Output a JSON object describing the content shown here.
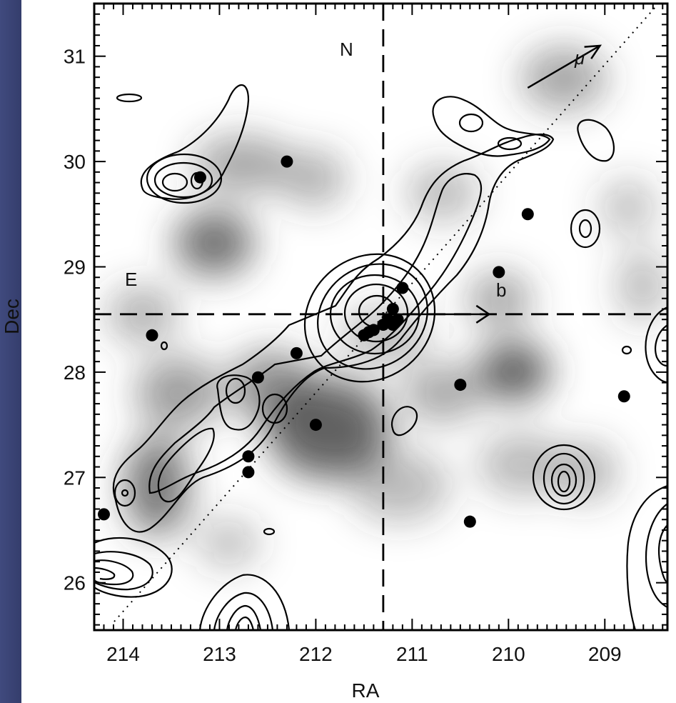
{
  "chart_data": {
    "type": "scatter",
    "title": "",
    "xlabel": "RA",
    "ylabel": "Dec",
    "xlim": [
      214.3,
      208.35
    ],
    "ylim": [
      25.55,
      31.5
    ],
    "x_ticks": [
      214,
      213,
      212,
      211,
      210,
      209
    ],
    "y_ticks": [
      26,
      27,
      28,
      29,
      30,
      31
    ],
    "x_tick_labels": [
      "214",
      "213",
      "212",
      "211",
      "210",
      "209"
    ],
    "y_tick_labels": [
      "26",
      "27",
      "28",
      "29",
      "30",
      "31"
    ],
    "grid": false,
    "background": "grayscale density map with contour overlay",
    "reference_lines": {
      "ra": 211.3,
      "dec": 28.55
    },
    "points": {
      "x": [
        213.2,
        212.3,
        209.8,
        210.1,
        211.1,
        211.2,
        211.25,
        211.3,
        211.4,
        211.45,
        211.5,
        211.2,
        211.15,
        213.7,
        212.2,
        212.6,
        212.0,
        212.7,
        212.7,
        210.5,
        208.8,
        214.2,
        210.4
      ],
      "y": [
        29.85,
        30.0,
        29.5,
        28.95,
        28.8,
        28.6,
        28.5,
        28.45,
        28.4,
        28.38,
        28.35,
        28.45,
        28.5,
        28.35,
        28.18,
        27.95,
        27.5,
        27.2,
        27.05,
        27.88,
        27.77,
        26.65,
        26.58
      ]
    },
    "annotations": [
      {
        "text": "N"
      },
      {
        "text": "E"
      },
      {
        "text": "b"
      },
      {
        "text": "μ"
      }
    ]
  },
  "colors": {
    "contour": "#000000",
    "points": "#000000",
    "shading": "#3c3c3c",
    "slide_background": "#000000",
    "slide_gradient": "#404a7e"
  }
}
